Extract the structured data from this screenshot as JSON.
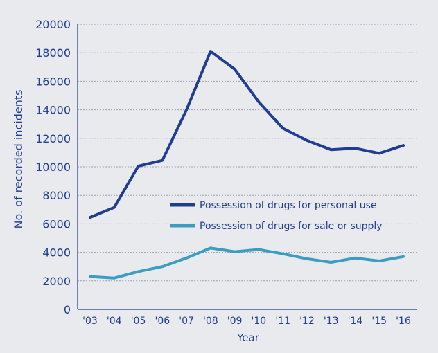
{
  "chart_data": {
    "type": "line",
    "title": "",
    "xlabel": "Year",
    "ylabel": "No. of recorded incidents",
    "categories": [
      "'03",
      "'04",
      "'05",
      "'06",
      "'07",
      "'08",
      "'09",
      "'10",
      "'11",
      "'12",
      "'13",
      "'14",
      "'15",
      "'16"
    ],
    "yticks": [
      "0",
      "2000",
      "4000",
      "6000",
      "8000",
      "10000",
      "12000",
      "14000",
      "16000",
      "18000",
      "20000"
    ],
    "ylim": [
      0,
      20000
    ],
    "grid": "horizontal dotted",
    "legend_position": "center-right",
    "series": [
      {
        "name": "Possession of drugs for personal use",
        "color": "#1f3d91",
        "values": [
          6450,
          7150,
          10050,
          10450,
          14000,
          18100,
          16850,
          14550,
          12700,
          11850,
          11200,
          11300,
          10950,
          11500
        ]
      },
      {
        "name": "Possession of drugs for sale or supply",
        "color": "#3b9dc1",
        "values": [
          2300,
          2200,
          2650,
          3000,
          3600,
          4300,
          4050,
          4200,
          3900,
          3550,
          3300,
          3600,
          3400,
          3700
        ]
      }
    ]
  },
  "colors": {
    "background": "#e9eaee",
    "axis_text": "#1f3d91",
    "grid": "#9a9fb0"
  }
}
